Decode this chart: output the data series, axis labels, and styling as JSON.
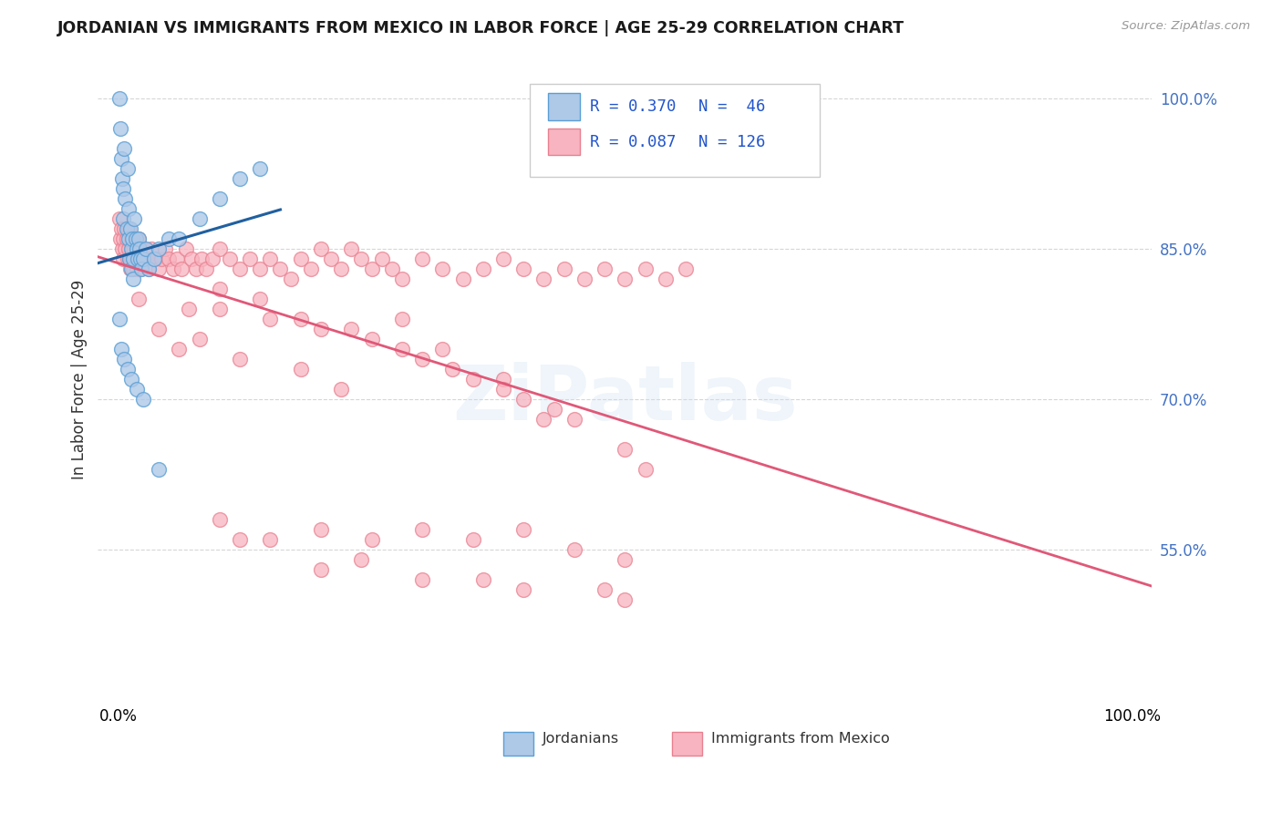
{
  "title": "JORDANIAN VS IMMIGRANTS FROM MEXICO IN LABOR FORCE | AGE 25-29 CORRELATION CHART",
  "source": "Source: ZipAtlas.com",
  "ylabel": "In Labor Force | Age 25-29",
  "y_tick_vals": [
    0.55,
    0.7,
    0.85,
    1.0
  ],
  "y_tick_labels": [
    "55.0%",
    "70.0%",
    "85.0%",
    "100.0%"
  ],
  "x_tick_vals": [
    0.0,
    1.0
  ],
  "x_tick_labels": [
    "0.0%",
    "100.0%"
  ],
  "xlim": [
    -0.02,
    1.02
  ],
  "ylim": [
    0.4,
    1.04
  ],
  "blue_face": "#aec8e8",
  "blue_edge": "#5a9fd4",
  "blue_line": "#2060a0",
  "pink_face": "#f8b4c0",
  "pink_edge": "#e88090",
  "pink_line": "#e05878",
  "tick_color": "#4472c4",
  "grid_color": "#cccccc",
  "watermark": "ZiPatlas",
  "legend_R1": "R = 0.370",
  "legend_N1": "N =  46",
  "legend_R2": "R = 0.087",
  "legend_N2": "N = 126",
  "legend_label1": "Jordanians",
  "legend_label2": "Immigrants from Mexico",
  "jord_x": [
    0.001,
    0.002,
    0.003,
    0.004,
    0.005,
    0.005,
    0.006,
    0.007,
    0.008,
    0.009,
    0.01,
    0.01,
    0.011,
    0.012,
    0.013,
    0.013,
    0.014,
    0.015,
    0.015,
    0.016,
    0.017,
    0.018,
    0.019,
    0.02,
    0.021,
    0.022,
    0.023,
    0.025,
    0.027,
    0.03,
    0.035,
    0.04,
    0.05,
    0.06,
    0.08,
    0.1,
    0.12,
    0.14,
    0.001,
    0.003,
    0.006,
    0.009,
    0.013,
    0.018,
    0.025,
    0.04
  ],
  "jord_y": [
    1.0,
    0.97,
    0.94,
    0.92,
    0.91,
    0.88,
    0.95,
    0.9,
    0.87,
    0.93,
    0.86,
    0.89,
    0.84,
    0.87,
    0.85,
    0.83,
    0.86,
    0.84,
    0.82,
    0.88,
    0.86,
    0.85,
    0.84,
    0.86,
    0.85,
    0.84,
    0.83,
    0.84,
    0.85,
    0.83,
    0.84,
    0.85,
    0.86,
    0.86,
    0.88,
    0.9,
    0.92,
    0.93,
    0.78,
    0.75,
    0.74,
    0.73,
    0.72,
    0.71,
    0.7,
    0.63
  ],
  "mex_x": [
    0.001,
    0.002,
    0.003,
    0.004,
    0.005,
    0.005,
    0.006,
    0.007,
    0.008,
    0.009,
    0.01,
    0.01,
    0.011,
    0.012,
    0.013,
    0.013,
    0.014,
    0.015,
    0.015,
    0.016,
    0.017,
    0.018,
    0.019,
    0.02,
    0.021,
    0.022,
    0.023,
    0.025,
    0.027,
    0.03,
    0.033,
    0.036,
    0.04,
    0.043,
    0.046,
    0.05,
    0.054,
    0.058,
    0.062,
    0.067,
    0.072,
    0.077,
    0.082,
    0.087,
    0.093,
    0.1,
    0.11,
    0.12,
    0.13,
    0.14,
    0.15,
    0.16,
    0.17,
    0.18,
    0.19,
    0.2,
    0.21,
    0.22,
    0.23,
    0.24,
    0.25,
    0.26,
    0.27,
    0.28,
    0.3,
    0.32,
    0.34,
    0.36,
    0.38,
    0.4,
    0.42,
    0.44,
    0.46,
    0.48,
    0.5,
    0.52,
    0.54,
    0.56,
    0.1,
    0.15,
    0.2,
    0.25,
    0.3,
    0.35,
    0.4,
    0.45,
    0.5,
    0.52,
    0.38,
    0.42,
    0.28,
    0.32,
    0.18,
    0.22,
    0.08,
    0.12,
    0.04,
    0.06,
    0.02,
    0.07,
    0.1,
    0.14,
    0.18,
    0.23,
    0.28,
    0.33,
    0.38,
    0.43,
    0.1,
    0.15,
    0.2,
    0.25,
    0.3,
    0.35,
    0.4,
    0.45,
    0.5,
    0.2,
    0.3,
    0.4,
    0.5,
    0.12,
    0.24,
    0.36,
    0.48
  ],
  "mex_y": [
    0.88,
    0.86,
    0.87,
    0.85,
    0.86,
    0.84,
    0.87,
    0.85,
    0.86,
    0.84,
    0.87,
    0.85,
    0.84,
    0.83,
    0.86,
    0.84,
    0.85,
    0.84,
    0.83,
    0.85,
    0.84,
    0.83,
    0.85,
    0.86,
    0.84,
    0.83,
    0.84,
    0.85,
    0.84,
    0.83,
    0.85,
    0.84,
    0.83,
    0.84,
    0.85,
    0.84,
    0.83,
    0.84,
    0.83,
    0.85,
    0.84,
    0.83,
    0.84,
    0.83,
    0.84,
    0.85,
    0.84,
    0.83,
    0.84,
    0.83,
    0.84,
    0.83,
    0.82,
    0.84,
    0.83,
    0.85,
    0.84,
    0.83,
    0.85,
    0.84,
    0.83,
    0.84,
    0.83,
    0.82,
    0.84,
    0.83,
    0.82,
    0.83,
    0.84,
    0.83,
    0.82,
    0.83,
    0.82,
    0.83,
    0.82,
    0.83,
    0.82,
    0.83,
    0.79,
    0.78,
    0.77,
    0.76,
    0.74,
    0.72,
    0.7,
    0.68,
    0.65,
    0.63,
    0.72,
    0.68,
    0.78,
    0.75,
    0.73,
    0.71,
    0.76,
    0.74,
    0.77,
    0.75,
    0.8,
    0.79,
    0.81,
    0.8,
    0.78,
    0.77,
    0.75,
    0.73,
    0.71,
    0.69,
    0.58,
    0.56,
    0.57,
    0.56,
    0.57,
    0.56,
    0.57,
    0.55,
    0.54,
    0.53,
    0.52,
    0.51,
    0.5,
    0.56,
    0.54,
    0.52,
    0.51
  ]
}
